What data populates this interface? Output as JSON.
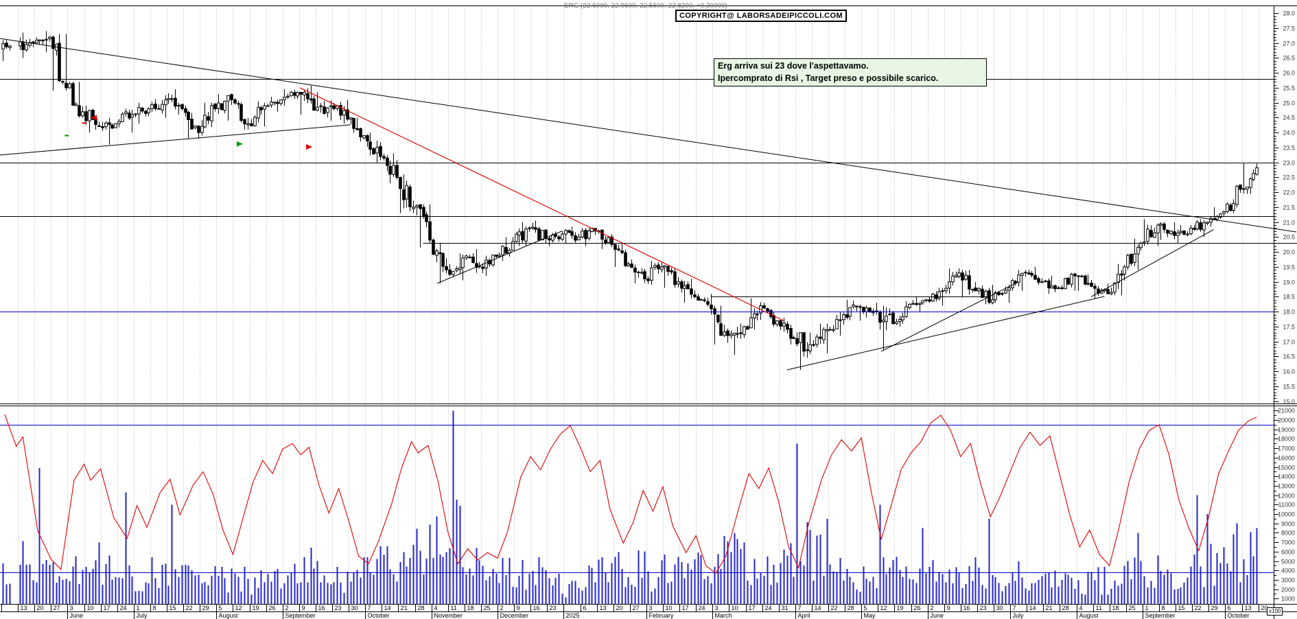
{
  "header": {
    "title": "ERG (22.6000, 22.9600, 22.5600, 22.8200, +0.30000)",
    "copyright": "COPYRIGHT@ LABORSADEIPICCOLI.COM"
  },
  "annotation": {
    "line1": "Erg arriva sui 23 dove l'aspettavamo.",
    "line2": "Ipercomprato di Rsi , Target preso e possibile scarico.",
    "bg": "#e8f6e3",
    "border": "#000000"
  },
  "colors": {
    "up_candle": "#ffffff",
    "down_candle": "#000000",
    "candle_stroke": "#000000",
    "volume": "#2424cc",
    "oscillator": "#e00000",
    "blue_level": "#0000cc",
    "grid": "#b4b4b4",
    "trend_black": "#000000",
    "trend_red": "#e00000",
    "axis_text": "#333333"
  },
  "chart_data": {
    "type": "candlestick",
    "symbol": "ERG",
    "title": "ERG (22.6000, 22.9600, 22.5600, 22.8200, +0.30000)",
    "last_day": {
      "open": 22.6,
      "high": 22.96,
      "low": 22.56,
      "close": 22.82,
      "change": "+0.30000"
    },
    "price_axis": {
      "min": 15.0,
      "max": 28.0,
      "label_step": 0.5,
      "minor_step": 0.1,
      "format": "0.0"
    },
    "volume_axis": {
      "min": 1000,
      "max": 21000,
      "label_step": 1000,
      "minor_step": 500,
      "unit": "x100",
      "blue_levels": [
        19500,
        3800
      ]
    },
    "x_axis": {
      "day_labels": [
        "",
        "13",
        "20",
        "27",
        "3",
        "10",
        "17",
        "24",
        "1",
        "8",
        "15",
        "22",
        "29",
        "5",
        "12",
        "19",
        "26",
        "2",
        "9",
        "16",
        "23",
        "30",
        "7",
        "14",
        "21",
        "28",
        "4",
        "11",
        "18",
        "25",
        "2",
        "9",
        "16",
        "23",
        "",
        "6",
        "13",
        "20",
        "27",
        "3",
        "10",
        "17",
        "24",
        "3",
        "10",
        "17",
        "24",
        "31",
        "7",
        "14",
        "22",
        "28",
        "5",
        "12",
        "19",
        "26",
        "2",
        "9",
        "16",
        "23",
        "30",
        "7",
        "14",
        "21",
        "28",
        "4",
        "11",
        "18",
        "25",
        "1",
        "8",
        "15",
        "22",
        "29",
        "6",
        "13",
        "20"
      ],
      "month_labels": [
        [
          4,
          "June"
        ],
        [
          8,
          "July"
        ],
        [
          13,
          "August"
        ],
        [
          17,
          "September"
        ],
        [
          22,
          "October"
        ],
        [
          26,
          "November"
        ],
        [
          30,
          "December"
        ],
        [
          34,
          "2025"
        ],
        [
          39,
          "February"
        ],
        [
          43,
          "March"
        ],
        [
          48,
          "April"
        ],
        [
          52,
          "May"
        ],
        [
          56,
          "June"
        ],
        [
          61,
          "July"
        ],
        [
          65,
          "August"
        ],
        [
          69,
          "September"
        ],
        [
          74,
          "October"
        ]
      ]
    },
    "partial_first_week_days": 3,
    "weekly_ohlcv": [
      [
        26.8,
        27.1,
        26.4,
        26.9,
        3000
      ],
      [
        26.9,
        27.35,
        26.5,
        27.0,
        4500
      ],
      [
        27.0,
        27.4,
        26.7,
        27.2,
        3800
      ],
      [
        27.2,
        27.3,
        25.4,
        25.5,
        5200
      ],
      [
        25.5,
        25.7,
        24.5,
        24.7,
        4600
      ],
      [
        24.7,
        24.9,
        24.0,
        24.2,
        5200
      ],
      [
        24.2,
        24.5,
        23.6,
        24.3,
        4000
      ],
      [
        24.3,
        24.8,
        24.0,
        24.6,
        3300
      ],
      [
        24.6,
        25.0,
        24.3,
        24.8,
        3000
      ],
      [
        24.8,
        25.25,
        24.5,
        25.1,
        3400
      ],
      [
        25.1,
        25.45,
        24.6,
        24.8,
        3100
      ],
      [
        24.8,
        24.9,
        23.8,
        24.0,
        3600
      ],
      [
        24.0,
        25.0,
        23.9,
        24.8,
        3200
      ],
      [
        24.8,
        25.3,
        24.4,
        25.1,
        3000
      ],
      [
        25.1,
        25.15,
        24.1,
        24.3,
        2800
      ],
      [
        24.3,
        25.05,
        24.2,
        24.9,
        2600
      ],
      [
        24.9,
        25.2,
        24.7,
        25.1,
        2800
      ],
      [
        25.1,
        25.45,
        24.9,
        25.35,
        3200
      ],
      [
        25.35,
        25.57,
        24.6,
        24.75,
        4200
      ],
      [
        24.75,
        25.35,
        24.4,
        24.9,
        3600
      ],
      [
        24.9,
        25.1,
        24.3,
        24.45,
        3000
      ],
      [
        24.45,
        24.5,
        23.7,
        23.9,
        3800
      ],
      [
        23.9,
        24.0,
        23.0,
        23.2,
        4400
      ],
      [
        23.2,
        23.3,
        22.3,
        22.5,
        4200
      ],
      [
        22.5,
        22.6,
        21.3,
        21.5,
        5200
      ],
      [
        21.5,
        21.6,
        20.15,
        20.4,
        5600
      ],
      [
        20.4,
        20.45,
        18.95,
        19.4,
        6800
      ],
      [
        19.4,
        19.95,
        19.05,
        19.8,
        7200
      ],
      [
        19.8,
        20.1,
        19.3,
        19.5,
        4800
      ],
      [
        19.5,
        19.9,
        19.2,
        19.85,
        3600
      ],
      [
        19.85,
        20.5,
        19.7,
        20.35,
        3400
      ],
      [
        20.35,
        21.0,
        20.2,
        20.8,
        3800
      ],
      [
        20.8,
        21.05,
        20.3,
        20.45,
        3400
      ],
      [
        20.45,
        20.7,
        20.2,
        20.6,
        2400
      ],
      [
        20.6,
        20.85,
        20.3,
        20.5,
        2000
      ],
      [
        20.5,
        20.8,
        20.2,
        20.7,
        3000
      ],
      [
        20.7,
        20.75,
        20.1,
        20.25,
        3400
      ],
      [
        20.25,
        20.3,
        19.5,
        19.6,
        3800
      ],
      [
        19.6,
        19.75,
        18.95,
        19.1,
        4200
      ],
      [
        19.1,
        19.7,
        18.9,
        19.5,
        3400
      ],
      [
        19.5,
        19.55,
        18.8,
        19.0,
        3600
      ],
      [
        19.0,
        19.1,
        18.3,
        18.5,
        4000
      ],
      [
        18.5,
        18.6,
        17.9,
        18.1,
        4400
      ],
      [
        18.1,
        18.2,
        16.9,
        17.2,
        5400
      ],
      [
        17.2,
        17.6,
        16.55,
        17.5,
        5000
      ],
      [
        17.5,
        18.45,
        17.4,
        18.2,
        4000
      ],
      [
        18.2,
        18.3,
        17.5,
        17.7,
        3600
      ],
      [
        17.7,
        17.8,
        16.9,
        17.1,
        4400
      ],
      [
        17.1,
        17.3,
        16.05,
        16.9,
        7000
      ],
      [
        16.9,
        17.6,
        16.6,
        17.4,
        5000
      ],
      [
        17.4,
        18.0,
        17.2,
        17.9,
        3800
      ],
      [
        17.9,
        18.4,
        17.7,
        18.15,
        3200
      ],
      [
        18.15,
        18.3,
        17.8,
        18.0,
        3000
      ],
      [
        18.0,
        18.2,
        16.7,
        17.6,
        5200
      ],
      [
        17.6,
        18.35,
        17.5,
        18.25,
        3600
      ],
      [
        18.25,
        18.5,
        18.0,
        18.4,
        3000
      ],
      [
        18.4,
        18.8,
        18.2,
        18.7,
        3200
      ],
      [
        18.7,
        19.45,
        18.6,
        19.3,
        3800
      ],
      [
        19.3,
        19.4,
        18.5,
        18.7,
        3400
      ],
      [
        18.7,
        18.9,
        18.25,
        18.4,
        3000
      ],
      [
        18.4,
        18.9,
        18.3,
        18.8,
        2800
      ],
      [
        18.8,
        19.4,
        18.7,
        19.3,
        3200
      ],
      [
        19.3,
        19.5,
        18.9,
        19.0,
        2800
      ],
      [
        19.0,
        19.2,
        18.6,
        18.8,
        2600
      ],
      [
        18.8,
        19.3,
        18.7,
        19.2,
        2400
      ],
      [
        19.2,
        19.25,
        18.7,
        18.85,
        2600
      ],
      [
        18.85,
        18.95,
        18.45,
        18.6,
        2800
      ],
      [
        18.6,
        19.6,
        18.55,
        19.5,
        3400
      ],
      [
        19.5,
        20.45,
        19.4,
        20.3,
        3800
      ],
      [
        20.3,
        21.1,
        20.2,
        20.9,
        4200
      ],
      [
        20.9,
        21.0,
        20.4,
        20.55,
        3600
      ],
      [
        20.55,
        20.9,
        20.3,
        20.8,
        3400
      ],
      [
        20.8,
        21.1,
        20.5,
        21.0,
        3800
      ],
      [
        21.0,
        21.5,
        20.85,
        21.35,
        4600
      ],
      [
        21.35,
        22.25,
        21.3,
        22.1,
        5400
      ],
      [
        22.1,
        22.98,
        21.95,
        22.82,
        6000
      ]
    ],
    "volume_spikes": [
      [
        2,
        1,
        14900
      ],
      [
        7,
        2,
        12300
      ],
      [
        10,
        1,
        11000
      ],
      [
        27,
        1,
        21000
      ],
      [
        48,
        0,
        17500
      ],
      [
        49,
        4,
        9500
      ],
      [
        53,
        0,
        11000
      ],
      [
        55,
        3,
        8500
      ],
      [
        59,
        3,
        9500
      ],
      [
        68,
        3,
        8000
      ],
      [
        72,
        1,
        12000
      ],
      [
        72,
        4,
        10000
      ],
      [
        74,
        3,
        9000
      ],
      [
        75,
        4,
        8500
      ]
    ],
    "horizontal_lines": [
      {
        "name": "resistance-25.8",
        "price": 25.8,
        "color": "#000000",
        "wFrom": null,
        "wTo": null
      },
      {
        "name": "target-23",
        "price": 23.0,
        "color": "#000000",
        "wFrom": null,
        "wTo": null
      },
      {
        "name": "level-21.2",
        "price": 21.2,
        "color": "#000000",
        "wFrom": null,
        "wTo": null
      },
      {
        "name": "level-20.3",
        "price": 20.3,
        "color": "#000000",
        "wFrom": 25.5,
        "wTo": null
      },
      {
        "name": "level-18.5",
        "price": 18.5,
        "color": "#000000",
        "wFrom": 42.9,
        "wTo": 59.8
      },
      {
        "name": "blue-level-18",
        "price": 18.0,
        "color": "#0000cc",
        "wFrom": null,
        "wTo": null
      }
    ],
    "trend_lines": [
      {
        "name": "long-descending-resistance",
        "color": "#000000",
        "w1": -0.08,
        "p1": 27.15,
        "w2": 78.3,
        "p2": 20.67
      },
      {
        "name": "rising-wedge-support-2024",
        "color": "#000000",
        "w1": -0.08,
        "p1": 23.25,
        "w2": 21.1,
        "p2": 24.26
      },
      {
        "name": "red-downtrend-line",
        "color": "#e00000",
        "w1": 18.05,
        "p1": 25.5,
        "w2": 47.3,
        "p2": 17.7
      },
      {
        "name": "nov-jan-rising-line",
        "color": "#000000",
        "w1": 26.35,
        "p1": 18.95,
        "w2": 33.9,
        "p2": 20.7
      },
      {
        "name": "april-uptrend-line",
        "color": "#000000",
        "w1": 47.5,
        "p1": 16.05,
        "w2": 66.7,
        "p2": 18.51
      },
      {
        "name": "may-uptrend-line",
        "color": "#000000",
        "w1": 53.2,
        "p1": 16.67,
        "w2": 61.5,
        "p2": 19.0
      },
      {
        "name": "aug-uptrend-line",
        "color": "#000000",
        "w1": 65.9,
        "p1": 18.5,
        "w2": 73.3,
        "p2": 20.75
      }
    ],
    "markers": [
      {
        "type": "dash",
        "color": "#00a000",
        "week": 3.95,
        "price": 23.9
      },
      {
        "type": "dash",
        "color": "#dd0000",
        "week": 5.0,
        "price": 24.32
      },
      {
        "type": "arrow-left",
        "color": "#dd0000",
        "week": 5.4,
        "price": 24.5
      },
      {
        "type": "arrow-right",
        "color": "#00a000",
        "week": 14.6,
        "price": 23.62
      },
      {
        "type": "arrow-right",
        "color": "#dd0000",
        "week": 18.8,
        "price": 23.52
      }
    ],
    "oscillator": {
      "color": "#e00000",
      "points": [
        [
          0.2,
          20600
        ],
        [
          0.9,
          17200
        ],
        [
          1.3,
          18200
        ],
        [
          2.2,
          8200
        ],
        [
          3.0,
          5200
        ],
        [
          3.6,
          4100
        ],
        [
          4.4,
          13600
        ],
        [
          5.0,
          15300
        ],
        [
          5.4,
          13600
        ],
        [
          6.0,
          14800
        ],
        [
          6.8,
          9600
        ],
        [
          7.6,
          7400
        ],
        [
          8.2,
          10900
        ],
        [
          8.8,
          8600
        ],
        [
          9.6,
          12300
        ],
        [
          10.2,
          13700
        ],
        [
          10.8,
          9900
        ],
        [
          11.6,
          13100
        ],
        [
          12.2,
          14500
        ],
        [
          12.8,
          12100
        ],
        [
          13.4,
          8300
        ],
        [
          14.0,
          5700
        ],
        [
          14.6,
          9500
        ],
        [
          15.2,
          13300
        ],
        [
          15.8,
          15700
        ],
        [
          16.4,
          14300
        ],
        [
          17.0,
          16900
        ],
        [
          17.6,
          17500
        ],
        [
          18.1,
          16300
        ],
        [
          18.6,
          17100
        ],
        [
          19.2,
          13100
        ],
        [
          19.8,
          10100
        ],
        [
          20.4,
          12700
        ],
        [
          21.0,
          9300
        ],
        [
          21.6,
          5500
        ],
        [
          22.2,
          4700
        ],
        [
          22.8,
          7100
        ],
        [
          23.6,
          11100
        ],
        [
          24.2,
          14900
        ],
        [
          24.8,
          17700
        ],
        [
          25.2,
          16500
        ],
        [
          25.8,
          17300
        ],
        [
          26.4,
          13500
        ],
        [
          27.0,
          8100
        ],
        [
          27.6,
          4700
        ],
        [
          28.2,
          6300
        ],
        [
          28.8,
          5100
        ],
        [
          29.4,
          5900
        ],
        [
          30.0,
          5300
        ],
        [
          30.6,
          8100
        ],
        [
          31.4,
          13900
        ],
        [
          32.0,
          16100
        ],
        [
          32.6,
          14700
        ],
        [
          33.2,
          16900
        ],
        [
          33.8,
          18500
        ],
        [
          34.4,
          19400
        ],
        [
          35.0,
          17100
        ],
        [
          35.6,
          14500
        ],
        [
          36.2,
          15700
        ],
        [
          36.8,
          10500
        ],
        [
          37.6,
          6900
        ],
        [
          38.2,
          9100
        ],
        [
          38.8,
          12500
        ],
        [
          39.4,
          10300
        ],
        [
          40.0,
          12900
        ],
        [
          40.6,
          8700
        ],
        [
          41.4,
          5900
        ],
        [
          42.0,
          7700
        ],
        [
          42.6,
          4500
        ],
        [
          43.2,
          3700
        ],
        [
          43.8,
          5500
        ],
        [
          44.6,
          10700
        ],
        [
          45.2,
          14300
        ],
        [
          45.8,
          12700
        ],
        [
          46.4,
          14900
        ],
        [
          47.0,
          11300
        ],
        [
          47.6,
          6500
        ],
        [
          48.2,
          4300
        ],
        [
          48.8,
          8900
        ],
        [
          49.6,
          13700
        ],
        [
          50.2,
          16300
        ],
        [
          50.8,
          17900
        ],
        [
          51.4,
          16700
        ],
        [
          52.0,
          18100
        ],
        [
          52.6,
          12300
        ],
        [
          53.2,
          7300
        ],
        [
          53.8,
          10900
        ],
        [
          54.4,
          14700
        ],
        [
          55.0,
          16500
        ],
        [
          55.6,
          17700
        ],
        [
          56.2,
          19700
        ],
        [
          56.8,
          20500
        ],
        [
          57.4,
          18900
        ],
        [
          58.0,
          16100
        ],
        [
          58.6,
          17500
        ],
        [
          59.2,
          13300
        ],
        [
          59.8,
          9700
        ],
        [
          60.4,
          11900
        ],
        [
          61.0,
          14500
        ],
        [
          61.6,
          17100
        ],
        [
          62.2,
          18700
        ],
        [
          62.8,
          17300
        ],
        [
          63.4,
          18300
        ],
        [
          64.0,
          14100
        ],
        [
          64.6,
          9900
        ],
        [
          65.2,
          6500
        ],
        [
          65.8,
          8300
        ],
        [
          66.4,
          5700
        ],
        [
          67.0,
          4500
        ],
        [
          67.6,
          8700
        ],
        [
          68.2,
          13500
        ],
        [
          68.8,
          16900
        ],
        [
          69.4,
          18900
        ],
        [
          70.0,
          19500
        ],
        [
          70.6,
          16300
        ],
        [
          71.2,
          11500
        ],
        [
          71.8,
          8500
        ],
        [
          72.4,
          6100
        ],
        [
          73.0,
          9700
        ],
        [
          73.6,
          14300
        ],
        [
          74.2,
          16700
        ],
        [
          74.8,
          18900
        ],
        [
          75.4,
          19900
        ],
        [
          75.9,
          20300
        ]
      ]
    }
  }
}
